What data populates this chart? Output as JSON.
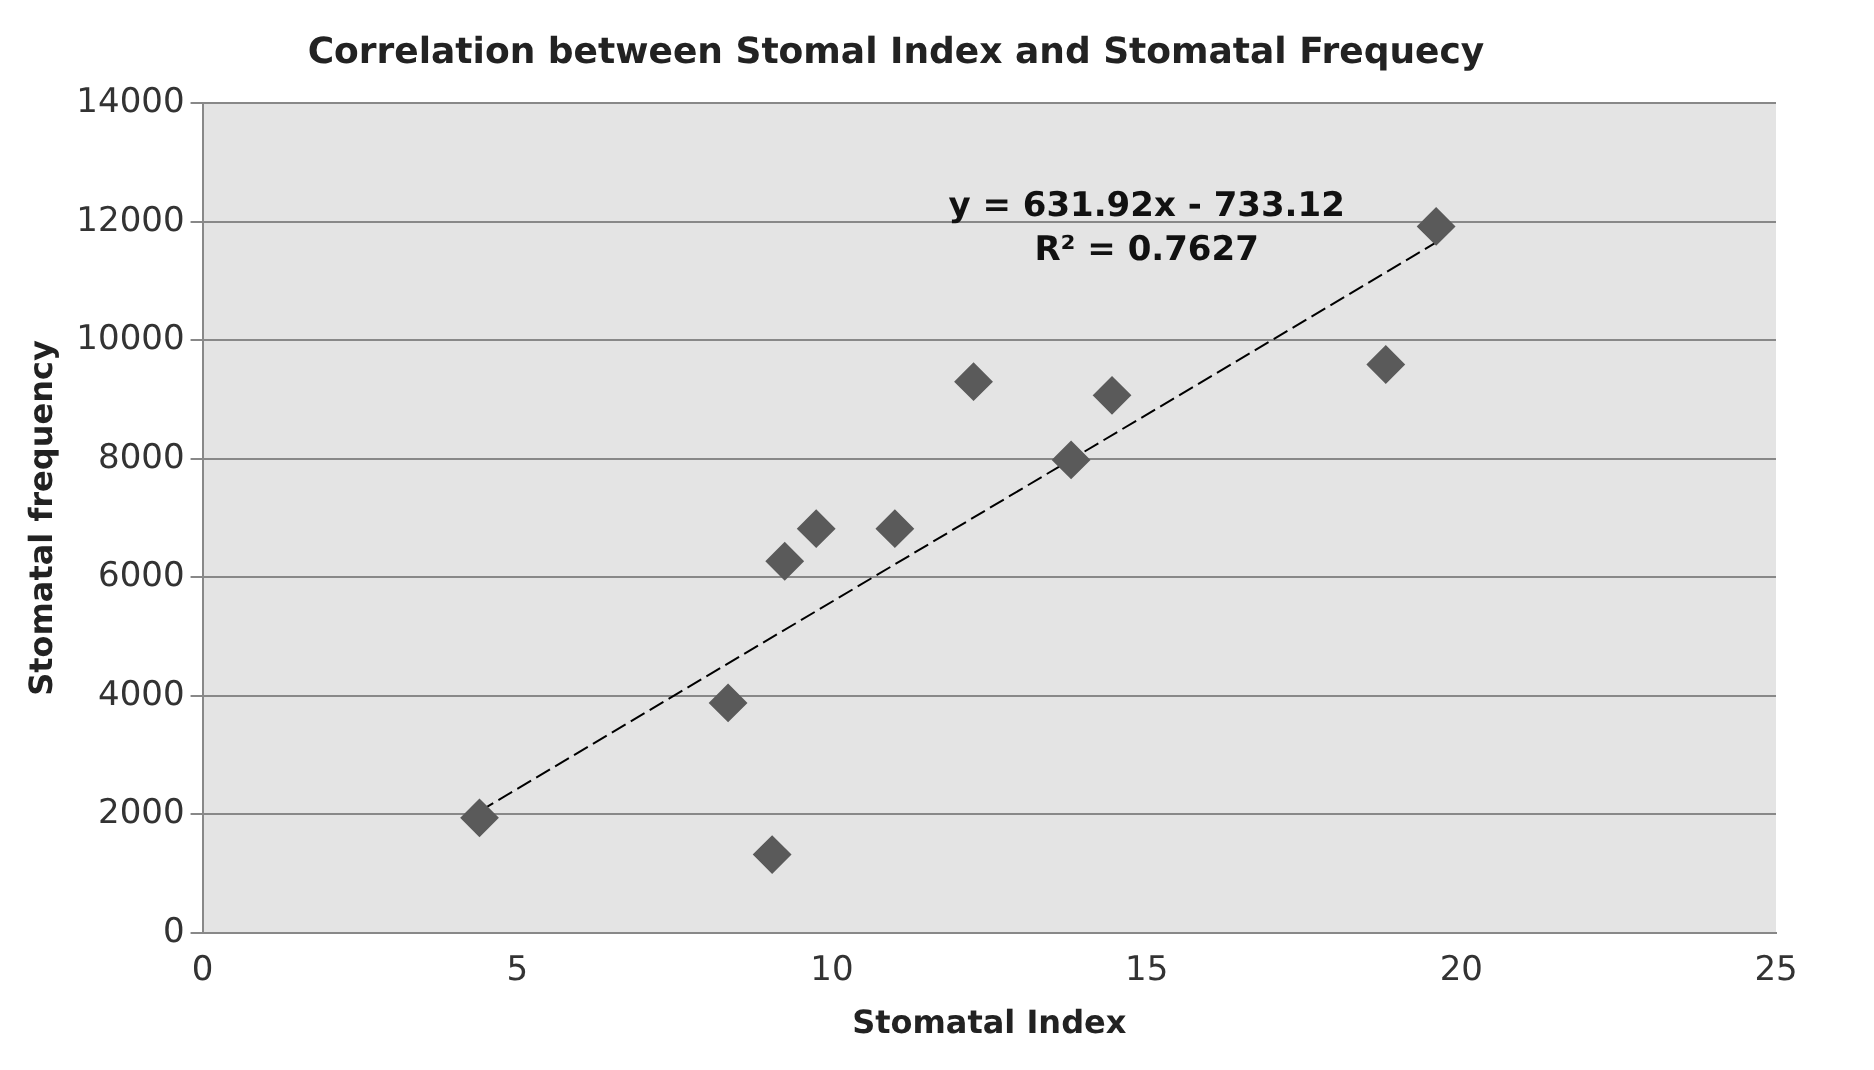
{
  "chart_data": {
    "type": "scatter",
    "title": "Correlation between Stomal Index and Stomatal Frequecy",
    "xlabel": "Stomatal Index",
    "ylabel": "Stomatal frequency",
    "xlim": [
      0,
      25
    ],
    "xticks": [
      0,
      5,
      10,
      15,
      20,
      25
    ],
    "ylim": [
      0,
      14000
    ],
    "yticks": [
      0,
      2000,
      4000,
      6000,
      8000,
      10000,
      12000,
      14000
    ],
    "grid": "y",
    "legend": false,
    "series": [
      {
        "marker": "diamond",
        "color": "#5a5a5a",
        "x": [
          4.4,
          8.35,
          9.05,
          9.25,
          9.75,
          11,
          12.25,
          13.8,
          14.45,
          18.8,
          19.6
        ],
        "values": [
          1940,
          3880,
          1320,
          6270,
          6820,
          6820,
          9300,
          7980,
          9070,
          9590,
          11920
        ]
      },
      {
        "type": "line",
        "marker": "none",
        "color": "#000000",
        "line_style": "dashed",
        "x": [
          4.4,
          19.6
        ],
        "values": [
          2050,
          11650
        ]
      }
    ],
    "annotations": [
      "y = 631.92x - 733.12",
      "R² = 0.7627"
    ]
  }
}
